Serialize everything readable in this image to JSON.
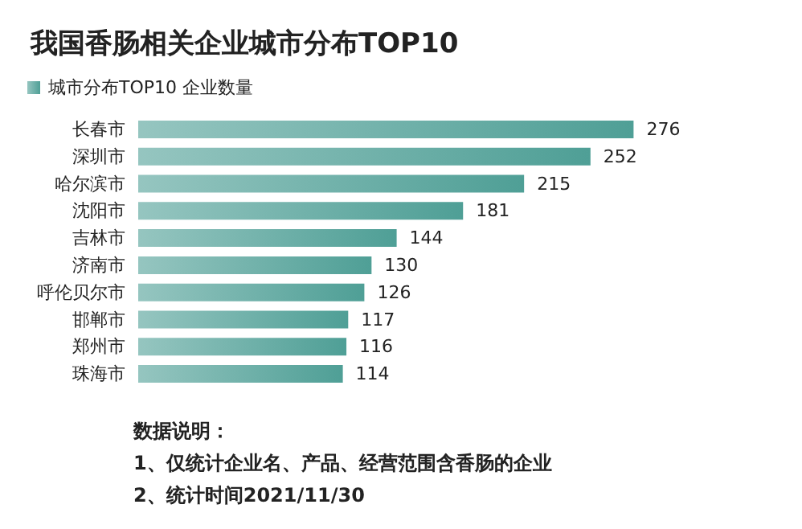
{
  "chart_data": {
    "type": "bar",
    "orientation": "horizontal",
    "title": "我国香肠相关企业城市分布TOP10",
    "categories": [
      "长春市",
      "深圳市",
      "哈尔滨市",
      "沈阳市",
      "吉林市",
      "济南市",
      "呼伦贝尔市",
      "邯郸市",
      "郑州市",
      "珠海市"
    ],
    "series": [
      {
        "name": "城市分布TOP10 企业数量",
        "color": "#4f9f96",
        "values": [
          276,
          252,
          215,
          181,
          144,
          130,
          126,
          117,
          116,
          114
        ]
      }
    ],
    "data_labels": true,
    "legend": "top left",
    "annotations": [
      "数据说明：",
      "1、仅统计企业名、产品、经营范围含香肠的企业",
      "2、统计时间2021/11/30"
    ]
  }
}
